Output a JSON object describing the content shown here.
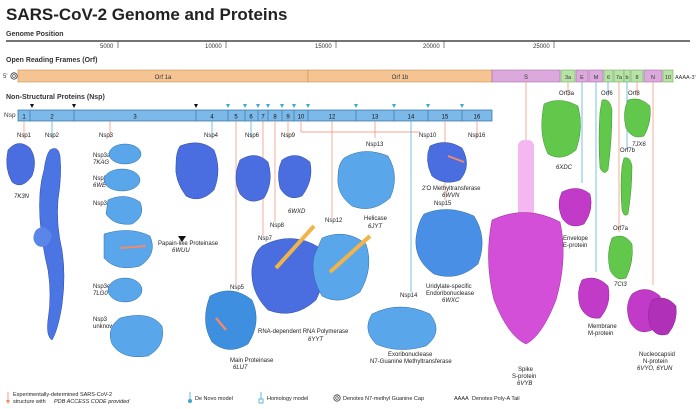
{
  "title": "SARS-CoV-2 Genome and Proteins",
  "genome_position": {
    "label": "Genome Position",
    "ticks": [
      "5000",
      "10000",
      "15000",
      "20000",
      "25000"
    ]
  },
  "orf": {
    "label": "Open Reading Frames (Orf)",
    "five_prime": "5'",
    "three_prime": "AAAA-3'",
    "segments": [
      "Orf 1a",
      "Orf 1b",
      "S",
      "3a",
      "E",
      "M",
      "6",
      "7a",
      "b",
      "8",
      "N",
      "10"
    ]
  },
  "nsp": {
    "label": "Non-Structural Proteins (Nsp)",
    "bar_label": "Nsp",
    "segments": [
      "1",
      "2",
      "3",
      "4",
      "5",
      "6",
      "7",
      "8",
      "9",
      "10",
      "12",
      "13",
      "14",
      "15",
      "16"
    ]
  },
  "proteins": [
    {
      "name": "Nsp1",
      "code": "7K3N"
    },
    {
      "name": "Nsp2",
      "code": ""
    },
    {
      "name": "Nsp3",
      "code": ""
    },
    {
      "name": "Nsp3a",
      "code": "7KAG"
    },
    {
      "name": "Nsp3b",
      "code": "6WEY"
    },
    {
      "name": "Nsp3c",
      "code": ""
    },
    {
      "name": "Papain-like Proteinase",
      "code": "6WUU"
    },
    {
      "name": "Nsp3e",
      "code": "7LG0"
    },
    {
      "name": "Nsp3",
      "sub": "unknown",
      "code": ""
    },
    {
      "name": "Nsp4",
      "code": ""
    },
    {
      "name": "Nsp6",
      "code": ""
    },
    {
      "name": "Nsp9",
      "code": "6WXD"
    },
    {
      "name": "Nsp13",
      "code": ""
    },
    {
      "name": "Helicase",
      "code": "6JYT"
    },
    {
      "name": "Nsp10",
      "code": ""
    },
    {
      "name": "Nsp16",
      "code": ""
    },
    {
      "name": "2'O Methyltransferase",
      "code": "6WVN"
    },
    {
      "name": "Nsp15",
      "code": ""
    },
    {
      "name": "Uridylate-specific",
      "sub": "Endoribonuclease",
      "code": "6WXC"
    },
    {
      "name": "Nsp7",
      "code": ""
    },
    {
      "name": "Nsp8",
      "code": ""
    },
    {
      "name": "Nsp12",
      "code": ""
    },
    {
      "name": "RNA-dependent RNA Polymerase",
      "code": "6YYT"
    },
    {
      "name": "Nsp5",
      "code": ""
    },
    {
      "name": "Main Proteinase",
      "code": "6LU7"
    },
    {
      "name": "Nsp14",
      "code": ""
    },
    {
      "name": "Exoribonuclease",
      "sub": "N7-Guanine Methyltransferase",
      "code": ""
    },
    {
      "name": "Spike",
      "sub": "S-protein",
      "code": "6VYB"
    },
    {
      "name": "Orf3a",
      "code": "6XDC"
    },
    {
      "name": "Envelope",
      "sub": "E-protein",
      "code": ""
    },
    {
      "name": "Membrane",
      "sub": "M-protein",
      "code": ""
    },
    {
      "name": "Orf6",
      "code": ""
    },
    {
      "name": "Orf7a",
      "code": "7CI3"
    },
    {
      "name": "Orf7b",
      "code": ""
    },
    {
      "name": "Orf8",
      "code": "7JX6"
    },
    {
      "name": "Nucleocapsid",
      "sub": "N-protein",
      "code": "6VYO, 6YUN"
    }
  ],
  "legend": {
    "experimental": "Experimentally-determined SARS-CoV-2",
    "experimental2": "structure with",
    "experimental3": "PDB ACCESS CODE provided",
    "denovo": "De Novo model",
    "homology": "Homology model",
    "cap": "Denotes N7-methyl Guanine Cap",
    "aaaa": "AAAA",
    "polya": "Denotes Poly-A Tail"
  },
  "colors": {
    "orf1": "#f6c493",
    "spike": "#dca9dd",
    "nsp_bar": "#7db9e8",
    "small_orf": "#b8e3a6",
    "protein_blue": "#4a7fe0",
    "protein_magenta": "#d34fd8",
    "protein_green": "#61c84c",
    "pointer_experimental": "#f08a6a",
    "pointer_model": "#3fa7d6"
  }
}
